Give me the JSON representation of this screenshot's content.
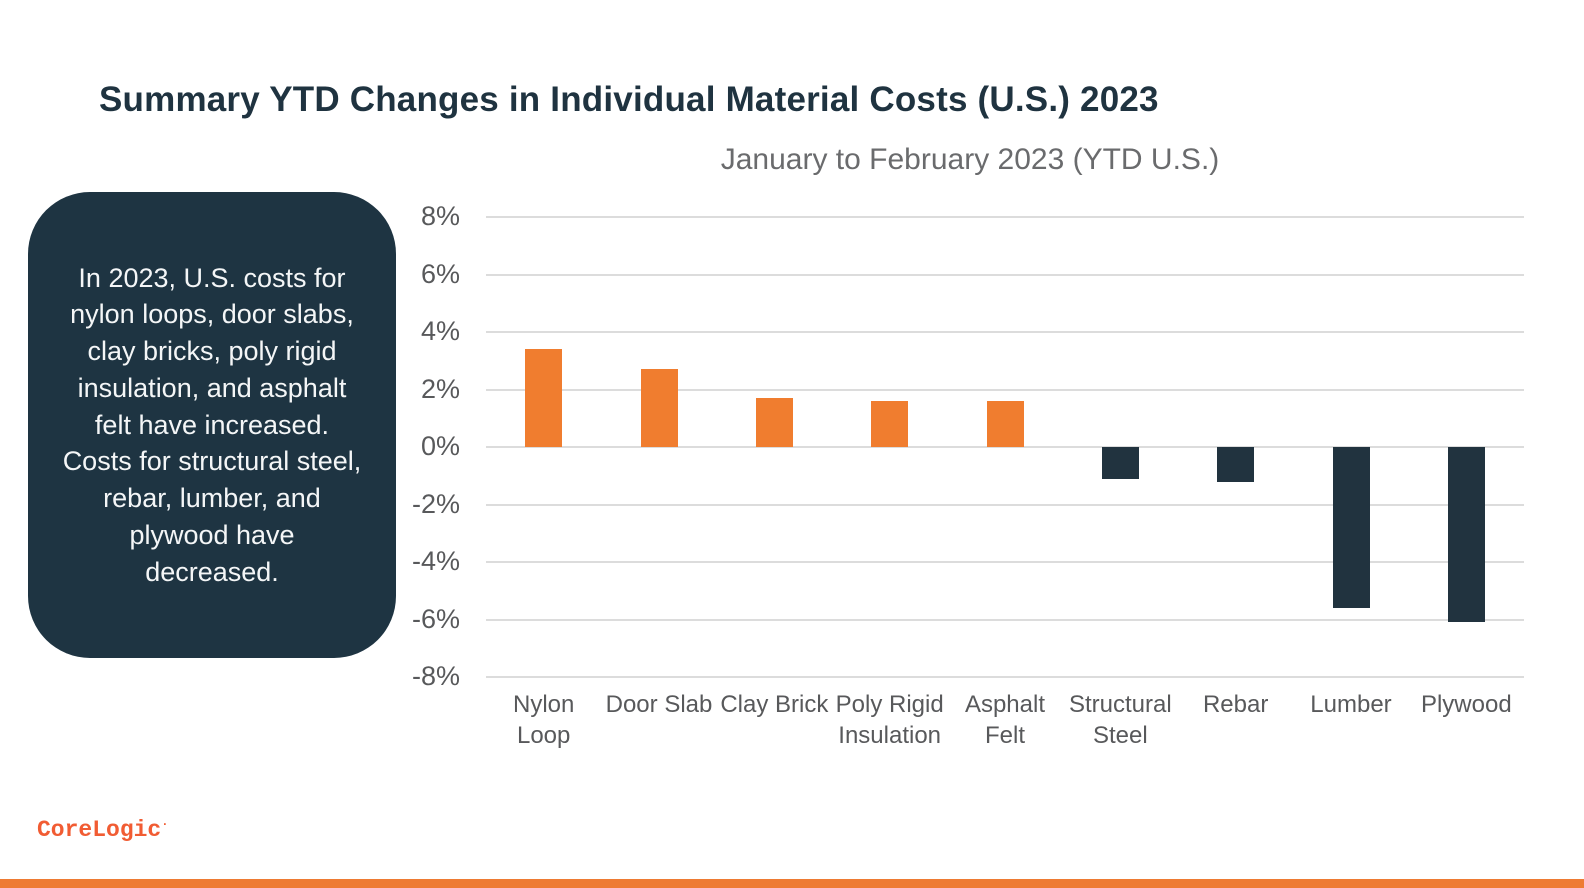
{
  "page": {
    "title": "Summary YTD Changes in Individual Material Costs (U.S.) 2023",
    "callout_text": "In 2023, U.S. costs for nylon loops, door slabs, clay bricks, poly rigid insulation, and asphalt felt have increased. Costs for structural steel, rebar, lumber, and plywood have decreased.",
    "logo_text": "CoreLogic",
    "logo_mark": "·"
  },
  "colors": {
    "title_navy": "#1f3340",
    "callout_bg": "#1e3442",
    "subtitle_gray": "#6a6b6d",
    "axis_gray": "#58595b",
    "gridline_gray": "#dcdcdc",
    "logo_orange": "#f15c33",
    "strip_orange": "#ee7b33"
  },
  "chart_data": {
    "type": "bar",
    "title": "January to February 2023 (YTD U.S.)",
    "categories": [
      "Nylon Loop",
      "Door Slab",
      "Clay Brick",
      "Poly Rigid Insulation",
      "Asphalt Felt",
      "Structural Steel",
      "Rebar",
      "Lumber",
      "Plywood"
    ],
    "values": [
      3.4,
      2.7,
      1.7,
      1.6,
      1.6,
      -1.1,
      -1.2,
      -5.6,
      -6.1
    ],
    "value_unit": "%",
    "xlabel": "",
    "ylabel": "",
    "ylim": [
      -8,
      8
    ],
    "ytick_step": 2,
    "ytick_labels": [
      "8%",
      "6%",
      "4%",
      "2%",
      "0%",
      "-2%",
      "-4%",
      "-6%",
      "-8%"
    ],
    "grid": true,
    "legend_position": "none",
    "positive_color": "#f07d2f",
    "negative_color": "#21333f"
  }
}
